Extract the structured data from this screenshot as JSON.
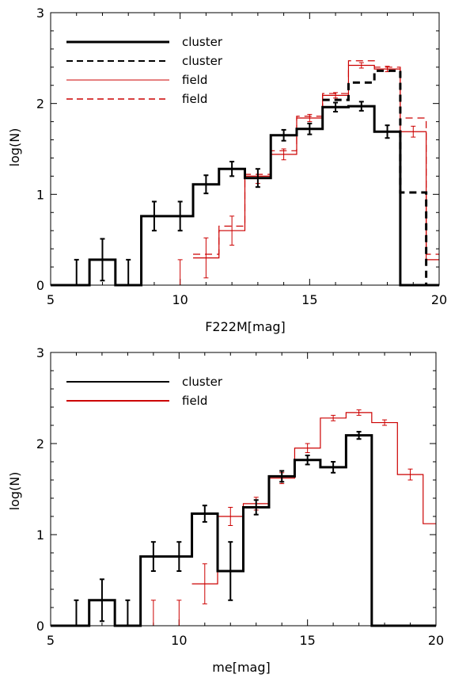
{
  "colors": {
    "cluster": "#000000",
    "field": "#cc0000",
    "axes": "#000000"
  },
  "chart_data": [
    {
      "type": "line",
      "style": "step histogram with error bars",
      "xlabel": "F222M[mag]",
      "ylabel": "log(N)",
      "xlim": [
        5,
        20
      ],
      "ylim": [
        0,
        3
      ],
      "xticks": [
        "5",
        "10",
        "15",
        "20"
      ],
      "yticks": [
        "0",
        "1",
        "2",
        "3"
      ],
      "legend_position": "top-left",
      "grid": false,
      "series": [
        {
          "name": "cluster",
          "color": "#000000",
          "dash": "solid",
          "weight": "thick",
          "bins": [
            {
              "x0": 5.0,
              "x1": 6.0,
              "y": 0
            },
            {
              "x0": 6.0,
              "x1": 6.5,
              "y": 0
            },
            {
              "x0": 6.5,
              "x1": 7.5,
              "y": 0.28,
              "err": 0.23
            },
            {
              "x0": 7.5,
              "x1": 8.5,
              "y": 0
            },
            {
              "x0": 8.5,
              "x1": 10.5,
              "y": 0.76,
              "err": 0.16
            },
            {
              "x0": 10.5,
              "x1": 11.5,
              "y": 1.11,
              "err": 0.1
            },
            {
              "x0": 11.5,
              "x1": 12.5,
              "y": 1.28,
              "err": 0.08
            },
            {
              "x0": 12.5,
              "x1": 13.5,
              "y": 1.18,
              "err": 0.1
            },
            {
              "x0": 13.5,
              "x1": 14.5,
              "y": 1.65,
              "err": 0.06
            },
            {
              "x0": 14.5,
              "x1": 15.5,
              "y": 1.72,
              "err": 0.06
            },
            {
              "x0": 15.5,
              "x1": 16.5,
              "y": 1.96,
              "err": 0.05
            },
            {
              "x0": 16.5,
              "x1": 17.5,
              "y": 1.97,
              "err": 0.05
            },
            {
              "x0": 17.5,
              "x1": 18.5,
              "y": 1.69,
              "err": 0.07
            },
            {
              "x0": 18.5,
              "x1": 20.0,
              "y": 0
            }
          ],
          "error_bars": [
            {
              "x": 6.0,
              "y": 0,
              "err": 0.28
            },
            {
              "x": 7.0,
              "y": 0.28,
              "err": 0.23
            },
            {
              "x": 8.0,
              "y": 0,
              "err": 0.28
            },
            {
              "x": 9.0,
              "y": 0.76,
              "err": 0.16
            },
            {
              "x": 10.0,
              "y": 0.76,
              "err": 0.16
            },
            {
              "x": 11.0,
              "y": 1.11,
              "err": 0.1
            },
            {
              "x": 12.0,
              "y": 1.28,
              "err": 0.08
            },
            {
              "x": 13.0,
              "y": 1.18,
              "err": 0.1
            },
            {
              "x": 14.0,
              "y": 1.65,
              "err": 0.06
            },
            {
              "x": 15.0,
              "y": 1.72,
              "err": 0.06
            },
            {
              "x": 16.0,
              "y": 1.96,
              "err": 0.05
            },
            {
              "x": 17.0,
              "y": 1.97,
              "err": 0.05
            },
            {
              "x": 18.0,
              "y": 1.69,
              "err": 0.07
            }
          ]
        },
        {
          "name": "cluster",
          "color": "#000000",
          "dash": "dashed",
          "weight": "thick",
          "bins": [
            {
              "x0": 15.5,
              "x1": 16.5,
              "y": 2.04
            },
            {
              "x0": 16.5,
              "x1": 17.5,
              "y": 2.23
            },
            {
              "x0": 17.5,
              "x1": 18.5,
              "y": 2.36
            },
            {
              "x0": 18.5,
              "x1": 19.5,
              "y": 1.02
            },
            {
              "x0": 19.5,
              "x1": 20.0,
              "y": 0
            }
          ],
          "error_bars": []
        },
        {
          "name": "field",
          "color": "#cc0000",
          "dash": "solid",
          "weight": "thin",
          "bins": [
            {
              "x0": 10.5,
              "x1": 11.5,
              "y": 0.3
            },
            {
              "x0": 11.5,
              "x1": 12.5,
              "y": 0.6
            },
            {
              "x0": 12.5,
              "x1": 13.5,
              "y": 1.2
            },
            {
              "x0": 13.5,
              "x1": 14.5,
              "y": 1.44
            },
            {
              "x0": 14.5,
              "x1": 15.5,
              "y": 1.84
            },
            {
              "x0": 15.5,
              "x1": 16.5,
              "y": 2.09
            },
            {
              "x0": 16.5,
              "x1": 17.5,
              "y": 2.42
            },
            {
              "x0": 17.5,
              "x1": 18.5,
              "y": 2.38
            },
            {
              "x0": 18.5,
              "x1": 19.5,
              "y": 1.69
            },
            {
              "x0": 19.5,
              "x1": 20.0,
              "y": 0.28
            }
          ],
          "error_bars": [
            {
              "x": 10.0,
              "y": 0,
              "err": 0.28
            },
            {
              "x": 11.0,
              "y": 0.3,
              "err": 0.22
            },
            {
              "x": 12.0,
              "y": 0.6,
              "err": 0.16
            },
            {
              "x": 13.0,
              "y": 1.2,
              "err": 0.08
            },
            {
              "x": 14.0,
              "y": 1.44,
              "err": 0.06
            },
            {
              "x": 15.0,
              "y": 1.84,
              "err": 0.04
            },
            {
              "x": 16.0,
              "y": 2.09,
              "err": 0.03
            },
            {
              "x": 17.0,
              "y": 2.42,
              "err": 0.03
            },
            {
              "x": 18.0,
              "y": 2.38,
              "err": 0.03
            },
            {
              "x": 19.0,
              "y": 1.69,
              "err": 0.06
            }
          ]
        },
        {
          "name": "field",
          "color": "#cc0000",
          "dash": "dashed",
          "weight": "thin",
          "bins": [
            {
              "x0": 10.5,
              "x1": 11.5,
              "y": 0.34
            },
            {
              "x0": 11.5,
              "x1": 12.5,
              "y": 0.65
            },
            {
              "x0": 12.5,
              "x1": 13.5,
              "y": 1.22
            },
            {
              "x0": 13.5,
              "x1": 14.5,
              "y": 1.48
            },
            {
              "x0": 14.5,
              "x1": 15.5,
              "y": 1.86
            },
            {
              "x0": 15.5,
              "x1": 16.5,
              "y": 2.11
            },
            {
              "x0": 16.5,
              "x1": 17.5,
              "y": 2.47
            },
            {
              "x0": 17.5,
              "x1": 18.5,
              "y": 2.4
            },
            {
              "x0": 18.5,
              "x1": 19.5,
              "y": 1.84
            },
            {
              "x0": 19.5,
              "x1": 20.0,
              "y": 0.34
            }
          ],
          "error_bars": []
        }
      ]
    },
    {
      "type": "line",
      "style": "step histogram with error bars",
      "xlabel": "me[mag]",
      "ylabel": "log(N)",
      "xlim": [
        5,
        20
      ],
      "ylim": [
        0,
        3
      ],
      "xticks": [
        "5",
        "10",
        "15",
        "20"
      ],
      "yticks": [
        "0",
        "1",
        "2",
        "3"
      ],
      "legend_position": "top-left",
      "grid": false,
      "series": [
        {
          "name": "cluster",
          "color": "#000000",
          "dash": "solid",
          "weight": "thick",
          "bins": [
            {
              "x0": 5.0,
              "x1": 6.5,
              "y": 0
            },
            {
              "x0": 6.5,
              "x1": 7.5,
              "y": 0.28
            },
            {
              "x0": 7.5,
              "x1": 8.5,
              "y": 0
            },
            {
              "x0": 8.5,
              "x1": 10.5,
              "y": 0.76
            },
            {
              "x0": 10.5,
              "x1": 11.5,
              "y": 1.23
            },
            {
              "x0": 11.5,
              "x1": 12.5,
              "y": 0.6
            },
            {
              "x0": 12.5,
              "x1": 13.5,
              "y": 1.3
            },
            {
              "x0": 13.5,
              "x1": 14.5,
              "y": 1.64
            },
            {
              "x0": 14.5,
              "x1": 15.5,
              "y": 1.82
            },
            {
              "x0": 15.5,
              "x1": 16.5,
              "y": 1.74
            },
            {
              "x0": 16.5,
              "x1": 17.5,
              "y": 2.09
            },
            {
              "x0": 17.5,
              "x1": 20.0,
              "y": 0
            }
          ],
          "error_bars": [
            {
              "x": 6.0,
              "y": 0,
              "err": 0.28
            },
            {
              "x": 7.0,
              "y": 0.28,
              "err": 0.23
            },
            {
              "x": 8.0,
              "y": 0,
              "err": 0.28
            },
            {
              "x": 9.0,
              "y": 0.76,
              "err": 0.16
            },
            {
              "x": 10.0,
              "y": 0.76,
              "err": 0.16
            },
            {
              "x": 11.0,
              "y": 1.23,
              "err": 0.09
            },
            {
              "x": 12.0,
              "y": 0.6,
              "err": 0.32
            },
            {
              "x": 13.0,
              "y": 1.3,
              "err": 0.08
            },
            {
              "x": 14.0,
              "y": 1.64,
              "err": 0.06
            },
            {
              "x": 15.0,
              "y": 1.82,
              "err": 0.05
            },
            {
              "x": 16.0,
              "y": 1.74,
              "err": 0.06
            },
            {
              "x": 17.0,
              "y": 2.09,
              "err": 0.04
            }
          ]
        },
        {
          "name": "field",
          "color": "#cc0000",
          "dash": "solid",
          "weight": "thin",
          "bins": [
            {
              "x0": 10.5,
              "x1": 11.5,
              "y": 0.46
            },
            {
              "x0": 11.5,
              "x1": 12.5,
              "y": 1.2
            },
            {
              "x0": 12.5,
              "x1": 13.5,
              "y": 1.34
            },
            {
              "x0": 13.5,
              "x1": 14.5,
              "y": 1.62
            },
            {
              "x0": 14.5,
              "x1": 15.5,
              "y": 1.95
            },
            {
              "x0": 15.5,
              "x1": 16.5,
              "y": 2.28
            },
            {
              "x0": 16.5,
              "x1": 17.5,
              "y": 2.34
            },
            {
              "x0": 17.5,
              "x1": 18.5,
              "y": 2.23
            },
            {
              "x0": 18.5,
              "x1": 19.5,
              "y": 1.66
            },
            {
              "x0": 19.5,
              "x1": 20.0,
              "y": 1.12
            }
          ],
          "error_bars": [
            {
              "x": 9.0,
              "y": 0,
              "err": 0.28
            },
            {
              "x": 10.0,
              "y": 0,
              "err": 0.28
            },
            {
              "x": 11.0,
              "y": 0.46,
              "err": 0.22
            },
            {
              "x": 12.0,
              "y": 1.2,
              "err": 0.1
            },
            {
              "x": 13.0,
              "y": 1.34,
              "err": 0.07
            },
            {
              "x": 14.0,
              "y": 1.62,
              "err": 0.06
            },
            {
              "x": 15.0,
              "y": 1.95,
              "err": 0.05
            },
            {
              "x": 16.0,
              "y": 2.28,
              "err": 0.03
            },
            {
              "x": 17.0,
              "y": 2.34,
              "err": 0.03
            },
            {
              "x": 18.0,
              "y": 2.23,
              "err": 0.03
            },
            {
              "x": 19.0,
              "y": 1.66,
              "err": 0.06
            }
          ]
        }
      ]
    }
  ]
}
